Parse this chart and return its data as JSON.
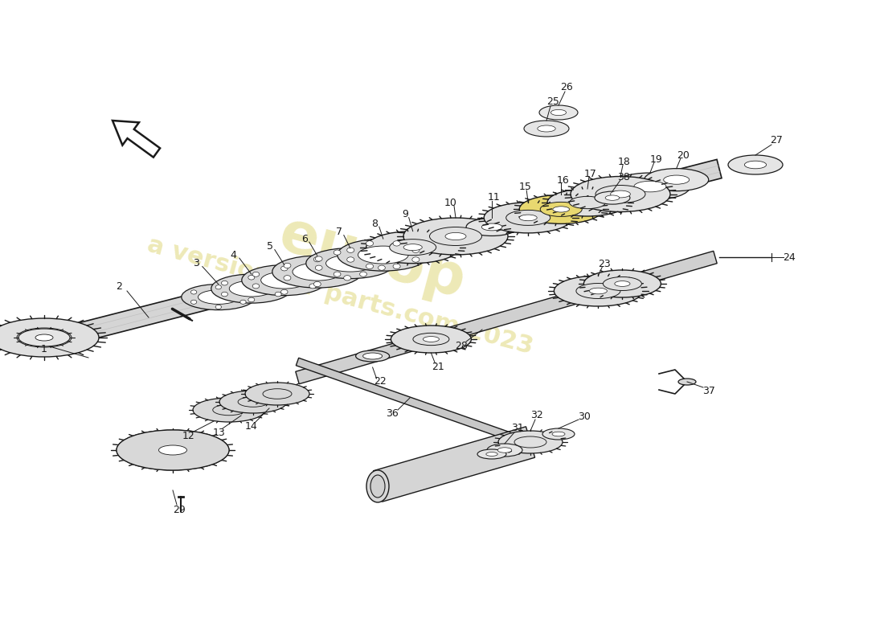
{
  "background_color": "#ffffff",
  "line_color": "#1a1a1a",
  "watermark_color": "#d4c84a",
  "watermark_alpha": 0.4,
  "shaft_color": "#d8d8d8",
  "gear_color": "#e0e0e0",
  "highlight_color": "#e8d870"
}
